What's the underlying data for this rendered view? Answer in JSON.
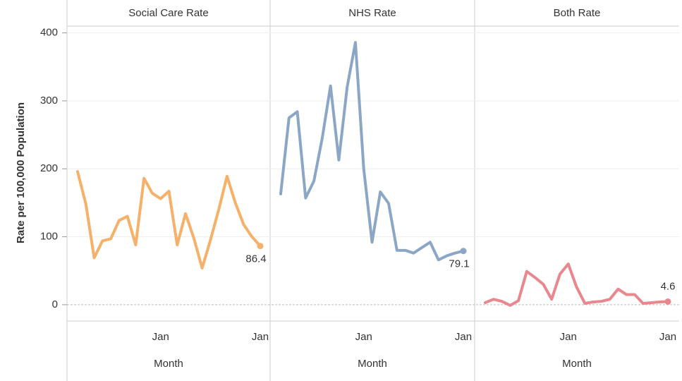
{
  "chart_data": {
    "type": "line",
    "ylabel": "Rate per 100,000 Population",
    "xlabel": "Month",
    "categories": [
      null,
      null,
      null,
      null,
      null,
      null,
      null,
      null,
      null,
      null,
      "Jan",
      null,
      null,
      null,
      null,
      null,
      null,
      null,
      null,
      null,
      null,
      null,
      "Jan"
    ],
    "ylim": [
      -24,
      410
    ],
    "yticks": [
      0,
      100,
      200,
      300,
      400
    ],
    "grid": true,
    "series": [
      {
        "name": "Social Care Rate",
        "color": "#f5b06a",
        "values": [
          196,
          148,
          69,
          94,
          97,
          124,
          130,
          88,
          186,
          164,
          156,
          167,
          88,
          134,
          98,
          54,
          95,
          140,
          189,
          150,
          118,
          100,
          86.4
        ],
        "value_labels": [
          null,
          null,
          null,
          null,
          null,
          null,
          null,
          null,
          null,
          null,
          null,
          null,
          null,
          null,
          null,
          null,
          null,
          null,
          null,
          null,
          null,
          null,
          "86.4"
        ]
      },
      {
        "name": "NHS Rate",
        "color": "#8ca7c6",
        "values": [
          163,
          275,
          284,
          157,
          182,
          245,
          322,
          213,
          320,
          386,
          200,
          92,
          166,
          149,
          80,
          80,
          76,
          84,
          92,
          66,
          72,
          76,
          79.1
        ],
        "value_labels": [
          null,
          null,
          null,
          null,
          null,
          null,
          null,
          null,
          null,
          null,
          null,
          null,
          null,
          null,
          null,
          null,
          null,
          null,
          null,
          null,
          null,
          null,
          "79.1"
        ]
      },
      {
        "name": "Both Rate",
        "color": "#e8878d",
        "values": [
          3,
          8,
          5,
          -1,
          6,
          49,
          40,
          30,
          8,
          45,
          60,
          26,
          2,
          4,
          5,
          8,
          23,
          15,
          15,
          2,
          3,
          4,
          4.6
        ],
        "value_labels": [
          null,
          null,
          null,
          null,
          null,
          null,
          null,
          null,
          null,
          null,
          null,
          null,
          null,
          null,
          null,
          null,
          null,
          null,
          null,
          null,
          null,
          null,
          "4.6"
        ]
      }
    ]
  }
}
